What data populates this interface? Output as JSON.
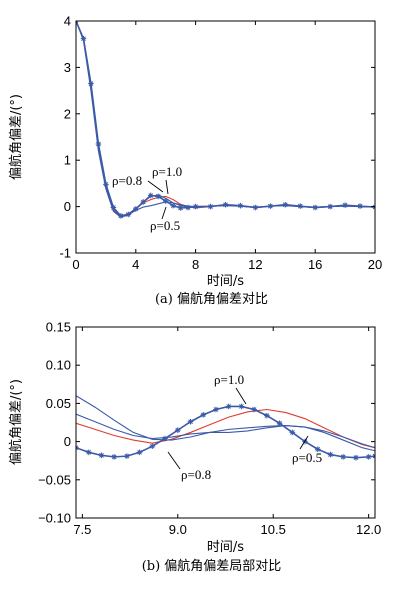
{
  "chart_data": [
    {
      "type": "line",
      "caption": "(a) 偏航角偏差对比",
      "xlabel": "时间/s",
      "ylabel": "偏航角偏差/(°)",
      "xlim": [
        0,
        20
      ],
      "ylim": [
        -1,
        4
      ],
      "xticks": [
        0,
        4,
        8,
        12,
        16,
        20
      ],
      "yticks": [
        -1,
        0,
        1,
        2,
        3,
        4
      ],
      "grid": false,
      "annotations": [
        {
          "text": "ρ=0.8",
          "target_x": 5.3,
          "target_y": 0.25
        },
        {
          "text": "ρ=1.0",
          "target_x": 5.7,
          "target_y": 0.22
        },
        {
          "text": "ρ=0.5",
          "target_x": 5.2,
          "target_y": 0.05
        }
      ],
      "series": [
        {
          "name": "ρ=1.0",
          "color": "#e03c2c",
          "marker": "none",
          "x": [
            0,
            0.5,
            1,
            1.5,
            2,
            2.5,
            3,
            3.5,
            4,
            4.5,
            5,
            5.5,
            6,
            6.5,
            7,
            7.5,
            8,
            9,
            10,
            11,
            12,
            13,
            14,
            15,
            16,
            17,
            18,
            19,
            20
          ],
          "y": [
            4.0,
            3.6,
            2.6,
            1.3,
            0.45,
            -0.05,
            -0.2,
            -0.15,
            -0.05,
            0.08,
            0.15,
            0.2,
            0.22,
            0.15,
            0.05,
            0.0,
            -0.03,
            0.0,
            0.04,
            0.01,
            -0.02,
            0.01,
            0.03,
            0.0,
            -0.02,
            0.0,
            0.02,
            0.0,
            -0.01
          ]
        },
        {
          "name": "ρ=0.8",
          "color": "#3b5aa8",
          "marker": "none",
          "x": [
            0,
            0.5,
            1,
            1.5,
            2,
            2.5,
            3,
            3.5,
            4,
            4.5,
            5,
            5.5,
            6,
            6.5,
            7,
            7.5,
            8,
            9,
            10,
            11,
            12,
            13,
            14,
            15,
            16,
            17,
            18,
            19,
            20
          ],
          "y": [
            4.0,
            3.6,
            2.55,
            1.25,
            0.4,
            -0.08,
            -0.22,
            -0.16,
            -0.04,
            0.1,
            0.22,
            0.25,
            0.18,
            0.08,
            0.02,
            -0.01,
            -0.02,
            0.01,
            0.03,
            0.01,
            -0.02,
            0.01,
            0.03,
            0.0,
            -0.02,
            0.0,
            0.02,
            0.0,
            -0.01
          ]
        },
        {
          "name": "ρ=0.5",
          "color": "#3b5aa8",
          "marker": "none",
          "x": [
            0,
            0.5,
            1,
            1.5,
            2,
            2.5,
            3,
            3.5,
            4,
            4.5,
            5,
            5.5,
            6,
            6.5,
            7,
            7.5,
            8,
            9,
            10,
            11,
            12,
            13,
            14,
            15,
            16,
            17,
            18,
            19,
            20
          ],
          "y": [
            4.0,
            3.58,
            2.5,
            1.2,
            0.38,
            -0.1,
            -0.23,
            -0.18,
            -0.08,
            -0.01,
            0.02,
            0.06,
            0.1,
            0.08,
            0.04,
            0.01,
            0.0,
            0.01,
            0.02,
            0.01,
            -0.01,
            0.01,
            0.02,
            0.0,
            -0.01,
            0.0,
            0.01,
            0.0,
            -0.01
          ]
        },
        {
          "name": "",
          "color": "#3b5aa8",
          "marker": "star",
          "x": [
            0,
            0.5,
            1,
            1.5,
            2,
            2.5,
            3,
            3.5,
            4,
            4.5,
            5,
            5.5,
            6,
            6.5,
            7,
            7.5,
            8,
            9,
            10,
            11,
            12,
            13,
            14,
            15,
            16,
            17,
            18,
            19,
            20
          ],
          "y": [
            4.0,
            3.62,
            2.65,
            1.35,
            0.48,
            -0.02,
            -0.2,
            -0.17,
            -0.05,
            0.1,
            0.24,
            0.22,
            0.12,
            0.02,
            -0.03,
            -0.02,
            0.0,
            0.0,
            0.04,
            0.02,
            -0.02,
            0.01,
            0.04,
            0.01,
            -0.02,
            0.0,
            0.03,
            0.01,
            -0.01
          ]
        }
      ]
    },
    {
      "type": "line",
      "caption": "(b) 偏航角偏差局部对比",
      "xlabel": "时间/s",
      "ylabel": "偏航角偏差/(°)",
      "xlim": [
        7.4,
        12.1
      ],
      "ylim": [
        -0.1,
        0.15
      ],
      "xticks": [
        7.5,
        9.0,
        10.5,
        12.0
      ],
      "xtick_labels": [
        "7.5",
        "9.0",
        "10.5",
        "12.0"
      ],
      "yticks": [
        -0.1,
        -0.05,
        0,
        0.05,
        0.1,
        0.15
      ],
      "ytick_labels": [
        "−0.10",
        "−0.05",
        "0",
        "0.05",
        "0.10",
        "0.15"
      ],
      "grid": false,
      "annotations": [
        {
          "text": "ρ=1.0",
          "target_x": 10.1,
          "target_y": 0.045
        },
        {
          "text": "ρ=0.8",
          "target_x": 8.8,
          "target_y": -0.012
        },
        {
          "text": "ρ=0.5",
          "target_x": 10.7,
          "target_y": 0.02
        }
      ],
      "series": [
        {
          "name": "ρ=1.0",
          "color": "#e03c2c",
          "marker": "none",
          "x": [
            7.4,
            7.7,
            8.0,
            8.3,
            8.6,
            8.9,
            9.2,
            9.5,
            9.8,
            10.1,
            10.4,
            10.7,
            11.0,
            11.3,
            11.6,
            11.9,
            12.1
          ],
          "y": [
            0.024,
            0.016,
            0.008,
            0.002,
            -0.002,
            0.003,
            0.012,
            0.022,
            0.032,
            0.039,
            0.042,
            0.038,
            0.03,
            0.018,
            0.006,
            -0.004,
            -0.008
          ]
        },
        {
          "name": "ρ=0.8",
          "color": "#3b5aa8",
          "marker": "none",
          "x": [
            7.4,
            7.7,
            8.0,
            8.3,
            8.6,
            8.9,
            9.2,
            9.5,
            9.8,
            10.1,
            10.4,
            10.7,
            11.0,
            11.3,
            11.6,
            11.9,
            12.1
          ],
          "y": [
            0.06,
            0.045,
            0.028,
            0.012,
            0.003,
            0.002,
            0.006,
            0.012,
            0.016,
            0.018,
            0.02,
            0.021,
            0.019,
            0.014,
            0.006,
            -0.003,
            -0.008
          ]
        },
        {
          "name": "ρ=0.5",
          "color": "#3b5aa8",
          "marker": "none",
          "x": [
            7.4,
            7.7,
            8.0,
            8.3,
            8.6,
            8.9,
            9.2,
            9.5,
            9.8,
            10.1,
            10.4,
            10.7,
            11.0,
            11.3,
            11.6,
            11.9,
            12.1
          ],
          "y": [
            0.036,
            0.026,
            0.016,
            0.008,
            0.004,
            0.006,
            0.01,
            0.012,
            0.012,
            0.014,
            0.018,
            0.021,
            0.019,
            0.012,
            0.002,
            -0.008,
            -0.012
          ]
        },
        {
          "name": "",
          "color": "#3b5aa8",
          "marker": "star",
          "x": [
            7.4,
            7.6,
            7.8,
            8.0,
            8.2,
            8.4,
            8.6,
            8.8,
            9.0,
            9.2,
            9.4,
            9.6,
            9.8,
            10.0,
            10.2,
            10.4,
            10.6,
            10.8,
            11.0,
            11.2,
            11.4,
            11.6,
            11.8,
            12.0,
            12.1
          ],
          "y": [
            -0.008,
            -0.014,
            -0.018,
            -0.02,
            -0.019,
            -0.014,
            -0.006,
            0.004,
            0.015,
            0.026,
            0.035,
            0.042,
            0.046,
            0.046,
            0.042,
            0.034,
            0.024,
            0.012,
            0.0,
            -0.01,
            -0.017,
            -0.02,
            -0.021,
            -0.02,
            -0.019
          ]
        }
      ]
    }
  ]
}
